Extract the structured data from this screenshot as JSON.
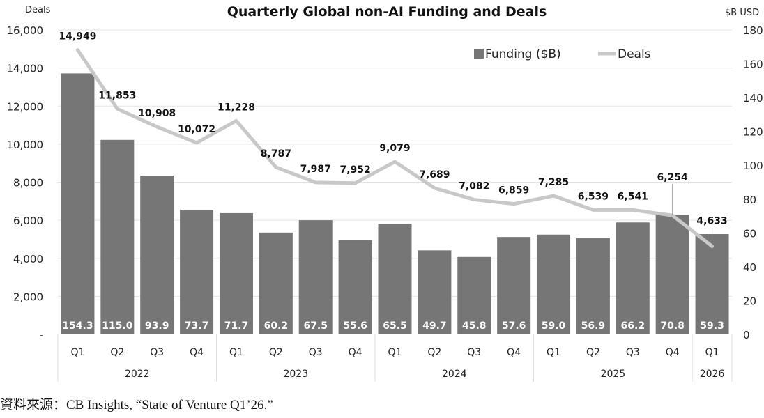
{
  "chart_data": {
    "type": "bar+line",
    "title": "Quarterly Global non-AI Funding and Deals",
    "y_left_label": "Deals",
    "y_right_label": "$B USD",
    "y_left_lim": [
      0,
      16000
    ],
    "y_right_lim": [
      0,
      180
    ],
    "y_left_ticks": [
      "-",
      "2,000",
      "4,000",
      "6,000",
      "8,000",
      "10,000",
      "12,000",
      "14,000",
      "16,000"
    ],
    "y_right_ticks": [
      "0",
      "20",
      "40",
      "60",
      "80",
      "100",
      "120",
      "140",
      "160",
      "180"
    ],
    "grid": true,
    "legend_position": "top-right",
    "categories": [
      "Q1",
      "Q2",
      "Q3",
      "Q4",
      "Q1",
      "Q2",
      "Q3",
      "Q4",
      "Q1",
      "Q2",
      "Q3",
      "Q4",
      "Q1",
      "Q2",
      "Q3",
      "Q4",
      "Q1"
    ],
    "years": [
      {
        "label": "2022",
        "span": 4
      },
      {
        "label": "2023",
        "span": 4
      },
      {
        "label": "2024",
        "span": 4
      },
      {
        "label": "2025",
        "span": 4
      },
      {
        "label": "2026",
        "span": 1
      }
    ],
    "series": [
      {
        "name": "Funding ($B)",
        "type": "bar",
        "axis": "right",
        "color": "#767676",
        "values": [
          154.3,
          115.0,
          93.9,
          73.7,
          71.7,
          60.2,
          67.5,
          55.6,
          65.5,
          49.7,
          45.8,
          57.6,
          59.0,
          56.9,
          66.2,
          70.8,
          59.3
        ],
        "labels": [
          "154.3",
          "115.0",
          "93.9",
          "73.7",
          "71.7",
          "60.2",
          "67.5",
          "55.6",
          "65.5",
          "49.7",
          "45.8",
          "57.6",
          "59.0",
          "56.9",
          "66.2",
          "70.8",
          "59.3"
        ]
      },
      {
        "name": "Deals",
        "type": "line",
        "axis": "left",
        "color": "#c8c8c8",
        "values": [
          14949,
          11853,
          10908,
          10072,
          11228,
          8787,
          7987,
          7952,
          9079,
          7689,
          7082,
          6859,
          7285,
          6539,
          6541,
          6254,
          4633
        ],
        "labels": [
          "14,949",
          "11,853",
          "10,908",
          "10,072",
          "11,228",
          "8,787",
          "7,987",
          "7,952",
          "9,079",
          "7,689",
          "7,082",
          "6,859",
          "7,285",
          "6,539",
          "6,541",
          "6,254",
          "4,633"
        ]
      }
    ]
  },
  "source": "資料來源：CB Insights, “State of Venture Q1’26.”"
}
